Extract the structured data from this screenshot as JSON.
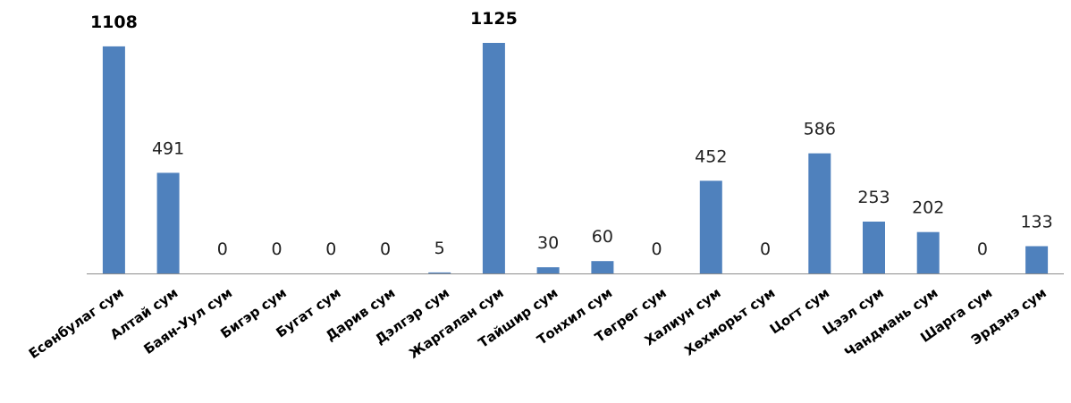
{
  "chart_data": {
    "type": "bar",
    "categories": [
      "Есөнбулаг сум",
      "Алтай сум",
      "Баян-Уул сум",
      "Бигэр сум",
      "Бугат сум",
      "Дарив сум",
      "Дэлгэр сум",
      "Жаргалан сум",
      "Тайшир сум",
      "Тонхил сум",
      "Төгрөг сум",
      "Халиун сум",
      "Хөхморьт сум",
      "Цогт сум",
      "Цээл сум",
      "Чандмань сум",
      "Шарга сум",
      "Эрдэнэ сум"
    ],
    "values": [
      1108,
      491,
      0,
      0,
      0,
      0,
      5,
      1125,
      30,
      60,
      0,
      452,
      0,
      586,
      253,
      202,
      0,
      133
    ],
    "value_labels": [
      "1108",
      "491",
      "0",
      "0",
      "0",
      "0",
      "5",
      "1125",
      "30",
      "60",
      "0",
      "452",
      "0",
      "586",
      "253",
      "202",
      "0",
      "133"
    ],
    "bold_value_labels": [
      true,
      false,
      false,
      false,
      false,
      false,
      false,
      true,
      false,
      false,
      false,
      false,
      false,
      false,
      false,
      false,
      false,
      false
    ],
    "title": "",
    "xlabel": "",
    "ylabel": "",
    "ylim": [
      0,
      1125
    ],
    "grid": false,
    "legend": "none",
    "bar_color": "#4f81bd",
    "axis_color": "#8c8c8c"
  }
}
